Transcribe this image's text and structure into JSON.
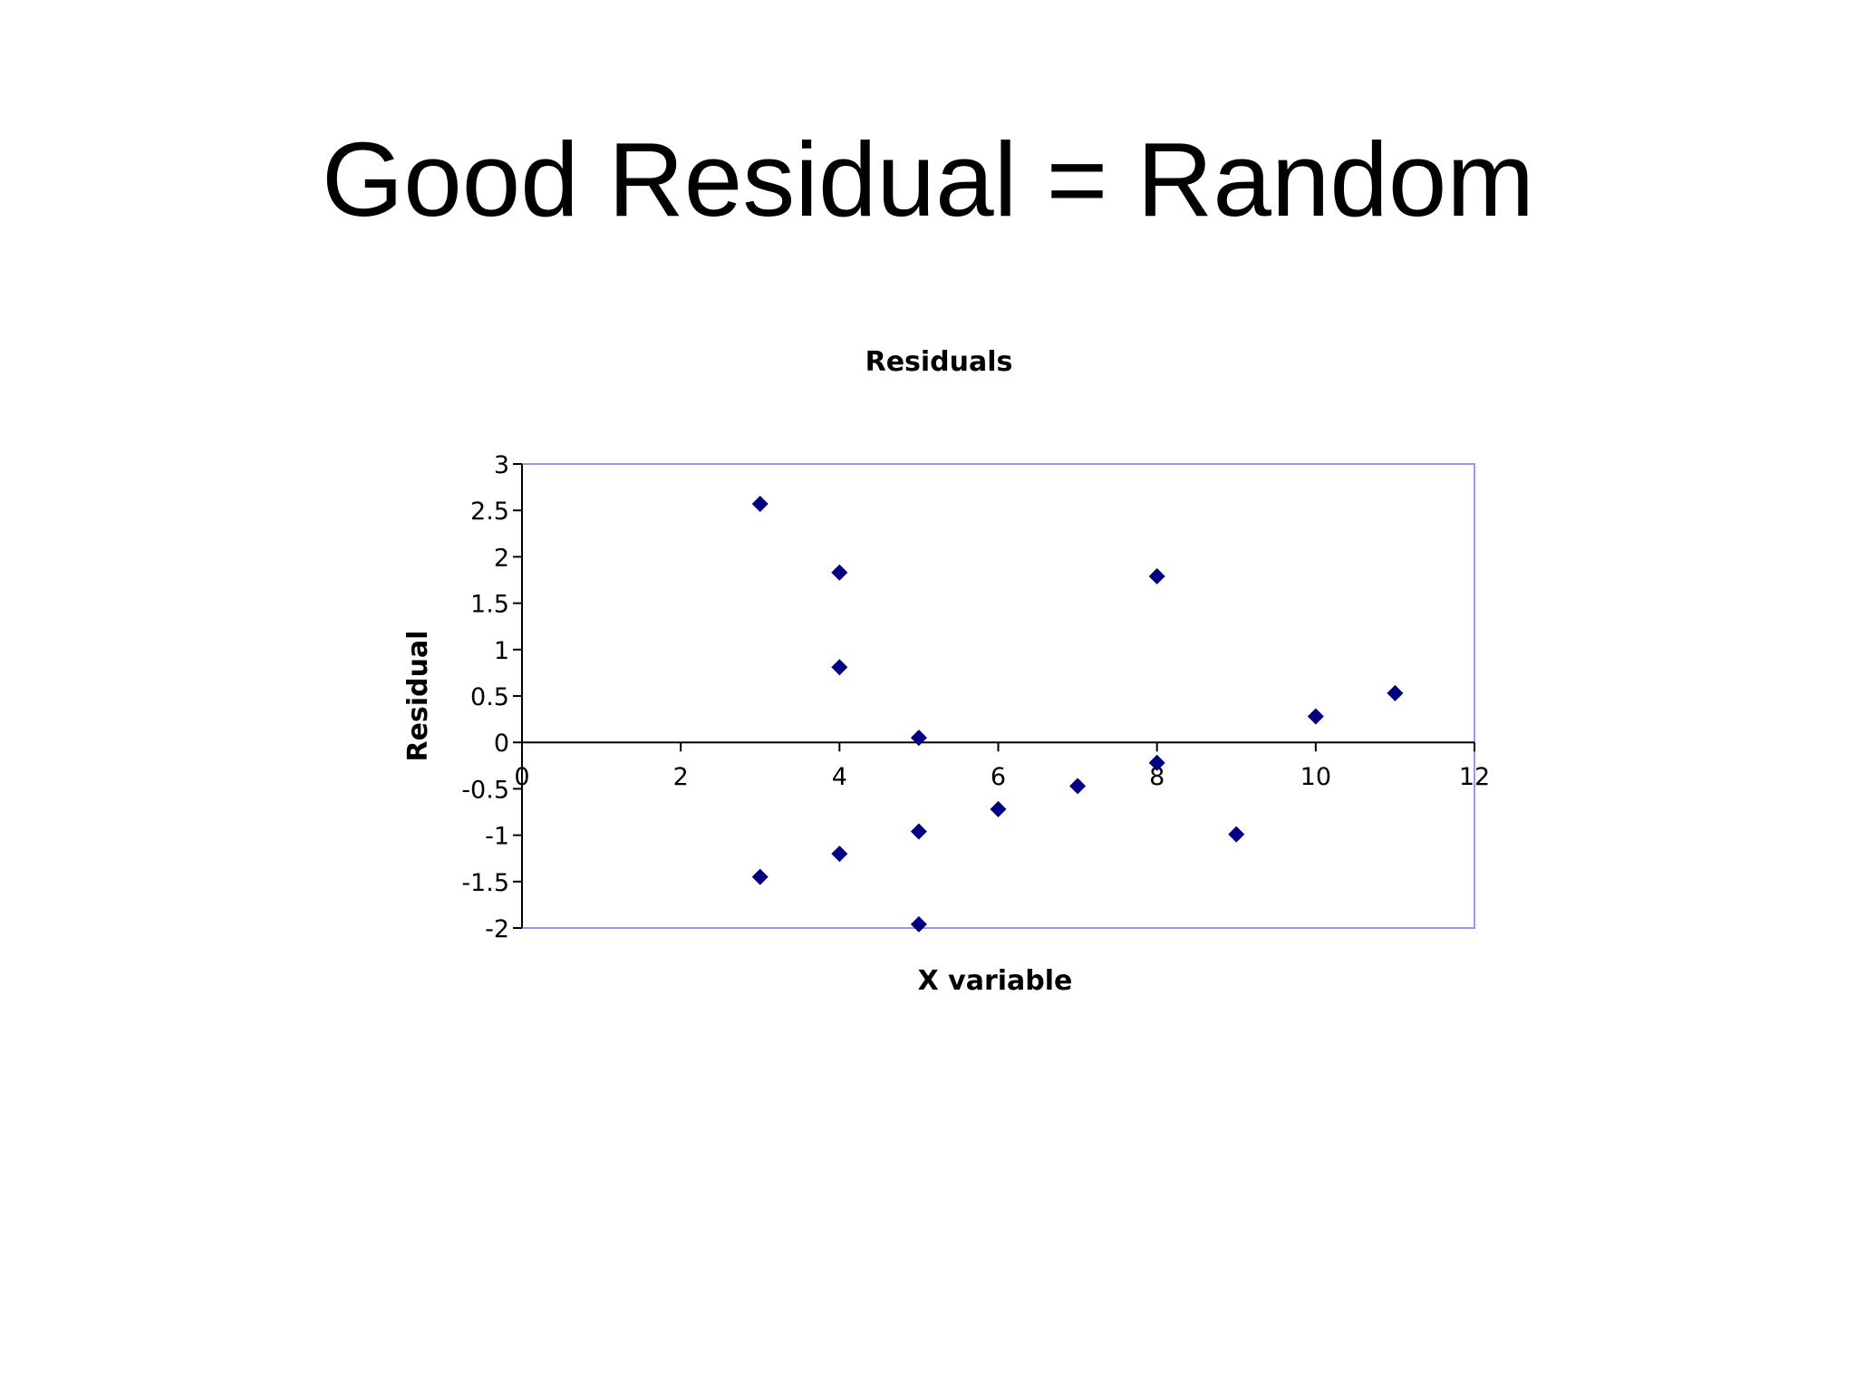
{
  "slide": {
    "title": "Good Residual = Random"
  },
  "chart_data": {
    "type": "scatter",
    "title": "Residuals",
    "xlabel": "X variable",
    "ylabel": "Residual",
    "xlim": [
      0,
      12
    ],
    "ylim": [
      -2,
      3
    ],
    "x_ticks": [
      0,
      2,
      4,
      6,
      8,
      10,
      12
    ],
    "x_tick_labels": [
      "0",
      "2",
      "4",
      "6",
      "8",
      "10",
      "12"
    ],
    "y_ticks": [
      3,
      2.5,
      2,
      1.5,
      1,
      0.5,
      0,
      -0.5,
      -1,
      -1.5,
      -2
    ],
    "y_tick_labels": [
      "3",
      "2.5",
      "2",
      "1.5",
      "1",
      "0.5",
      "0",
      "-0.5",
      "-1",
      "-1.5",
      "-2"
    ],
    "grid": false,
    "marker": "diamond",
    "colors": {
      "marker": "#000080",
      "plot_border": "#9999DD",
      "axis": "#000000"
    },
    "series": [
      {
        "points": [
          {
            "x": 3,
            "y": 2.57
          },
          {
            "x": 3,
            "y": -1.45
          },
          {
            "x": 4,
            "y": 1.83
          },
          {
            "x": 4,
            "y": 0.81
          },
          {
            "x": 4,
            "y": -1.2
          },
          {
            "x": 5,
            "y": 0.05
          },
          {
            "x": 5,
            "y": -0.96
          },
          {
            "x": 5,
            "y": -1.96
          },
          {
            "x": 6,
            "y": -0.72
          },
          {
            "x": 7,
            "y": -0.47
          },
          {
            "x": 8,
            "y": 1.79
          },
          {
            "x": 8,
            "y": -0.22
          },
          {
            "x": 9,
            "y": -0.99
          },
          {
            "x": 10,
            "y": 0.28
          },
          {
            "x": 11,
            "y": 0.53
          }
        ]
      }
    ]
  }
}
